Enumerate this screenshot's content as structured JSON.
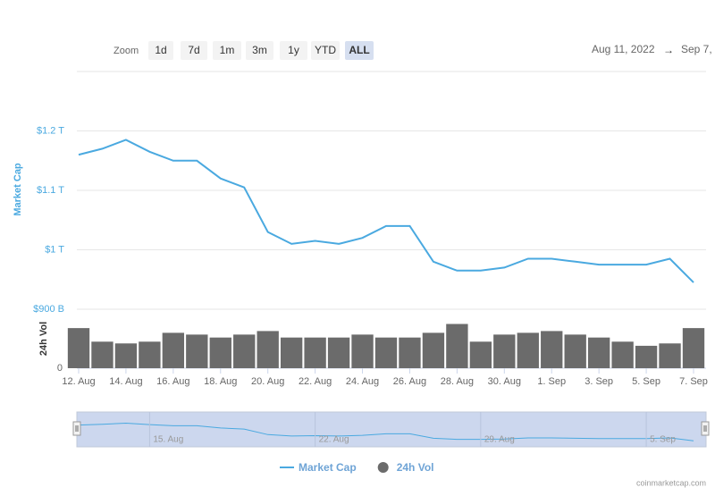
{
  "toolbar": {
    "zoom_label": "Zoom",
    "buttons": [
      "1d",
      "7d",
      "1m",
      "3m",
      "1y",
      "YTD",
      "ALL"
    ],
    "active": "ALL"
  },
  "date_range": {
    "from": "Aug 11, 2022",
    "arrow": "→",
    "to": "Sep 7,"
  },
  "chart_data": {
    "type": "line",
    "categories": [
      "12. Aug",
      null,
      "14. Aug",
      null,
      "16. Aug",
      null,
      "18. Aug",
      null,
      "20. Aug",
      null,
      "22. Aug",
      null,
      "24. Aug",
      null,
      "26. Aug",
      null,
      "28. Aug",
      null,
      "30. Aug",
      null,
      "1. Sep",
      null,
      "3. Sep",
      null,
      "5. Sep",
      null,
      "7. Sep"
    ],
    "series": [
      {
        "name": "Market Cap",
        "color": "#4aa9e0",
        "type": "line",
        "values": [
          1160000000000,
          1170000000000,
          1185000000000,
          1165000000000,
          1150000000000,
          1150000000000,
          1120000000000,
          1105000000000,
          1030000000000,
          1010000000000,
          1015000000000,
          1010000000000,
          1020000000000,
          1040000000000,
          1040000000000,
          980000000000,
          965000000000,
          965000000000,
          970000000000,
          985000000000,
          985000000000,
          980000000000,
          975000000000,
          975000000000,
          975000000000,
          985000000000,
          945000000000
        ]
      },
      {
        "name": "24h Vol",
        "color": "#6b6b6b",
        "type": "bar",
        "axis": "y2",
        "values": [
          68000000000,
          45000000000,
          42000000000,
          45000000000,
          60000000000,
          57000000000,
          52000000000,
          57000000000,
          63000000000,
          52000000000,
          52000000000,
          52000000000,
          57000000000,
          52000000000,
          52000000000,
          60000000000,
          75000000000,
          45000000000,
          57000000000,
          60000000000,
          63000000000,
          57000000000,
          52000000000,
          45000000000,
          38000000000,
          42000000000,
          68000000000
        ]
      }
    ],
    "ylabel": "Market Cap",
    "y2label": "24h Vol",
    "ylim": [
      900000000000,
      1300000000000
    ],
    "yticks": [
      {
        "value": 900000000000,
        "label": "$900 B"
      },
      {
        "value": 1000000000000,
        "label": "$1 T"
      },
      {
        "value": 1100000000000,
        "label": "$1.1 T"
      },
      {
        "value": 1200000000000,
        "label": "$1.2 T"
      }
    ],
    "y2lim": [
      0,
      100000000000
    ],
    "y2ticks": [
      0
    ],
    "grid": true,
    "navigator_xticks": [
      {
        "value": 3,
        "label": "15. Aug"
      },
      {
        "value": 10,
        "label": "22. Aug"
      },
      {
        "value": 17,
        "label": "29. Aug"
      },
      {
        "value": 24,
        "label": "5. Sep"
      }
    ]
  },
  "credit": "coinmarketcap.com"
}
